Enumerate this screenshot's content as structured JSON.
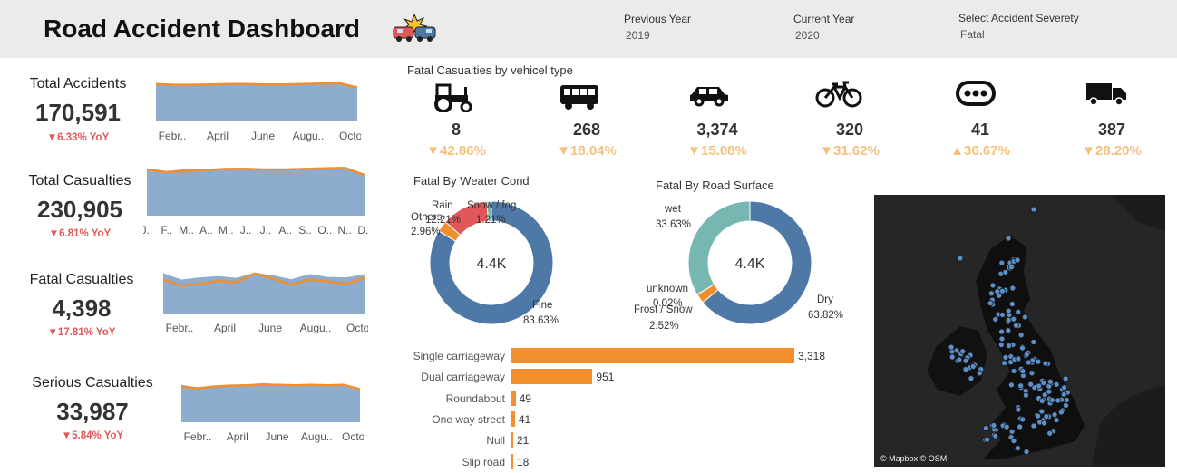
{
  "header": {
    "title": "Road Accident Dashboard",
    "filters": [
      {
        "label": "Previous Year",
        "value": "2019"
      },
      {
        "label": "Current Year",
        "value": "2020"
      },
      {
        "label": "Select Accident Severety",
        "value": "Fatal"
      }
    ]
  },
  "kpis": [
    {
      "label": "Total Accidents",
      "value": "170,591",
      "yoy": "▼6.33% YoY",
      "months": [
        "Febr..",
        "April",
        "June",
        "Augu..",
        "Octo.."
      ],
      "area": [
        0.88,
        0.85,
        0.83,
        0.84,
        0.86,
        0.87,
        0.86,
        0.84,
        0.85,
        0.86,
        0.87,
        0.76
      ],
      "line": [
        0.86,
        0.84,
        0.84,
        0.85,
        0.86,
        0.86,
        0.85,
        0.85,
        0.86,
        0.87,
        0.88,
        0.78
      ]
    },
    {
      "label": "Total Casualties",
      "value": "230,905",
      "yoy": "▼6.81% YoY",
      "months": [
        "J..",
        "F..",
        "M..",
        "A..",
        "M..",
        "J..",
        "J..",
        "A..",
        "S..",
        "O..",
        "N..",
        "D.."
      ],
      "area": [
        0.86,
        0.82,
        0.86,
        0.85,
        0.86,
        0.88,
        0.86,
        0.85,
        0.86,
        0.88,
        0.89,
        0.74
      ],
      "line": [
        0.85,
        0.8,
        0.82,
        0.84,
        0.86,
        0.86,
        0.85,
        0.85,
        0.86,
        0.87,
        0.88,
        0.75
      ]
    },
    {
      "label": "Fatal Casualties",
      "value": "4,398",
      "yoy": "▼17.81% YoY",
      "months": [
        "Febr..",
        "April",
        "June",
        "Augu..",
        "Octo.."
      ],
      "area": [
        0.93,
        0.78,
        0.83,
        0.86,
        0.82,
        0.94,
        0.88,
        0.79,
        0.91,
        0.84,
        0.83,
        0.9
      ],
      "line": [
        0.78,
        0.64,
        0.68,
        0.75,
        0.72,
        0.92,
        0.8,
        0.66,
        0.78,
        0.74,
        0.68,
        0.82
      ]
    },
    {
      "label": "Serious Casualties",
      "value": "33,987",
      "yoy": "▼5.84% YoY",
      "months": [
        "Febr..",
        "April",
        "June",
        "Augu..",
        "Octo.."
      ],
      "area": [
        0.86,
        0.8,
        0.84,
        0.86,
        0.87,
        0.9,
        0.88,
        0.86,
        0.88,
        0.87,
        0.88,
        0.74
      ],
      "line": [
        0.82,
        0.78,
        0.82,
        0.84,
        0.85,
        0.86,
        0.86,
        0.85,
        0.86,
        0.85,
        0.86,
        0.76
      ]
    }
  ],
  "vehicle_section": {
    "title": "Fatal Casualties by vehicel type",
    "items": [
      {
        "icon": "tractor-icon",
        "value": "8",
        "yoy": "▼42.86%"
      },
      {
        "icon": "bus-icon",
        "value": "268",
        "yoy": "▼18.04%"
      },
      {
        "icon": "car-icon",
        "value": "3,374",
        "yoy": "▼15.08%"
      },
      {
        "icon": "bicycle-icon",
        "value": "320",
        "yoy": "▼31.62%"
      },
      {
        "icon": "other-icon",
        "value": "41",
        "yoy": "▲36.67%"
      },
      {
        "icon": "truck-icon",
        "value": "387",
        "yoy": "▼28.20%"
      }
    ]
  },
  "chart_data": [
    {
      "type": "pie",
      "title": "Fatal By Weater Cond",
      "center": "4.4K",
      "slices": [
        {
          "name": "Fine",
          "pct": "83.63%",
          "value": 83.63,
          "color": "#4e79a7"
        },
        {
          "name": "Others",
          "pct": "2.96%",
          "value": 2.96,
          "color": "#f28e2b"
        },
        {
          "name": "Rain",
          "pct": "12.21%",
          "value": 12.21,
          "color": "#e15759"
        },
        {
          "name": "Snow / fog",
          "pct": "1.21%",
          "value": 1.21,
          "color": "#76b7b2"
        }
      ]
    },
    {
      "type": "pie",
      "title": "Fatal By Road Surface",
      "center": "4.4K",
      "slices": [
        {
          "name": "Dry",
          "pct": "63.82%",
          "value": 63.82,
          "color": "#4e79a7"
        },
        {
          "name": "Frost / Snow",
          "pct": "2.52%",
          "value": 2.52,
          "color": "#f28e2b"
        },
        {
          "name": "unknown",
          "pct": "0.02%",
          "value": 0.02,
          "color": "#e15759"
        },
        {
          "name": "wet",
          "pct": "33.63%",
          "value": 33.63,
          "color": "#76b7b2"
        }
      ]
    },
    {
      "type": "bar",
      "orientation": "horizontal",
      "categories": [
        "Single carriageway",
        "Dual carriageway",
        "Roundabout",
        "One way street",
        "Null",
        "Slip road"
      ],
      "values": [
        3318,
        951,
        49,
        41,
        21,
        18
      ],
      "labels": [
        "3,318",
        "951",
        "49",
        "41",
        "21",
        "18"
      ],
      "color": "#f28e2b",
      "xlim": [
        0,
        3318
      ]
    }
  ],
  "map": {
    "attribution": "© Mapbox © OSM",
    "point_color": "#5b8fc9"
  },
  "colors": {
    "area": "#8eaccd",
    "line": "#f28e2b",
    "negative": "#e15759",
    "veh_change": "#f6c07c"
  }
}
